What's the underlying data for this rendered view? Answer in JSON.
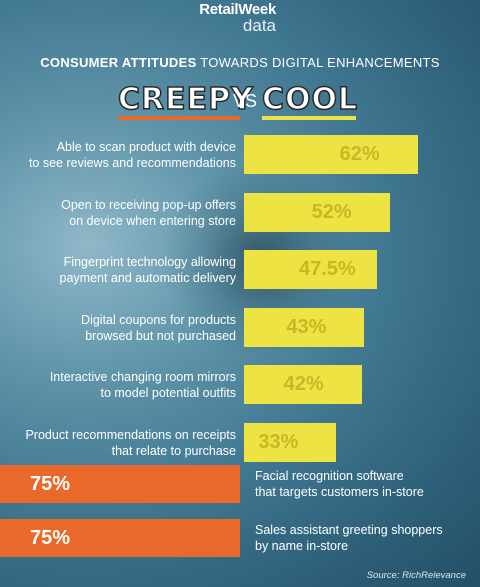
{
  "brand": {
    "line1": "RetailWeek",
    "line2": "data"
  },
  "headline": {
    "bold": "CONSUMER ATTITUDES",
    "rest": " TOWARDS DIGITAL ENHANCEMENTS"
  },
  "versus": {
    "creepy": "CREEPY",
    "vs": "VS",
    "cool": "COOL"
  },
  "colors": {
    "cool": "#ede444",
    "creepy": "#e8692a"
  },
  "chart_data": {
    "type": "bar",
    "title": "CONSUMER ATTITUDES TOWARDS DIGITAL ENHANCEMENTS",
    "unit": "%",
    "cool": [
      {
        "line1": "Able to scan product with device",
        "line2": "to see reviews and recommendations",
        "value": 62,
        "label": "62%"
      },
      {
        "line1": "Open to receiving pop-up offers",
        "line2": "on device when entering store",
        "value": 52,
        "label": "52%"
      },
      {
        "line1": "Fingerprint technology allowing",
        "line2": "payment and automatic delivery",
        "value": 47.5,
        "label": "47.5%"
      },
      {
        "line1": "Digital coupons for products",
        "line2": "browsed but not purchased",
        "value": 43,
        "label": "43%"
      },
      {
        "line1": "Interactive changing room mirrors",
        "line2": "to model potential outfits",
        "value": 42,
        "label": "42%"
      },
      {
        "line1": "Product recommendations on receipts",
        "line2": "that relate to purchase",
        "value": 33,
        "label": "33%"
      }
    ],
    "creepy": [
      {
        "line1": "Facial recognition software",
        "line2": "that targets customers in-store",
        "value": 75,
        "label": "75%"
      },
      {
        "line1": "Sales assistant greeting shoppers",
        "line2": "by name in-store",
        "value": 75,
        "label": "75%"
      }
    ]
  },
  "source": "Source: RichRelevance"
}
